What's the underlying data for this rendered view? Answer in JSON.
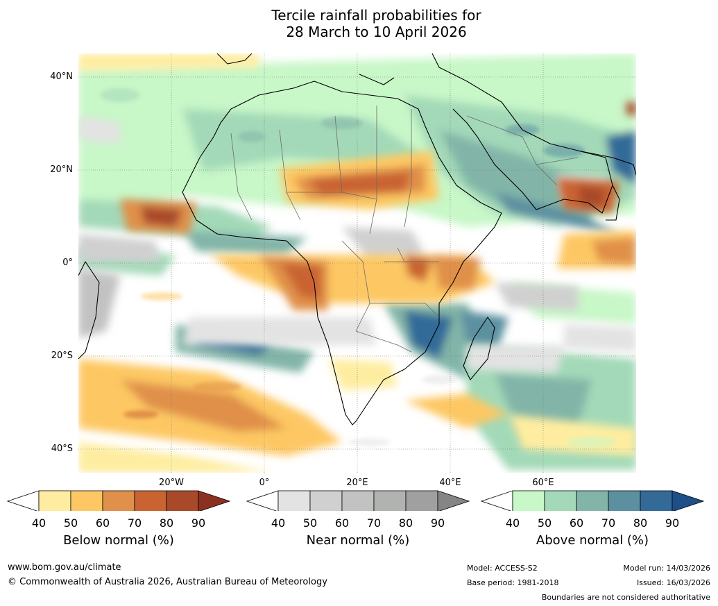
{
  "title": {
    "line1": "Tercile rainfall probabilities for",
    "line2": "28 March to 10 April 2026"
  },
  "map": {
    "lat_labels": [
      "40°N",
      "20°N",
      "0°",
      "20°S",
      "40°S"
    ],
    "lon_labels": [
      "20°W",
      "0°",
      "20°E",
      "40°E",
      "60°E"
    ]
  },
  "legend": {
    "below": {
      "title": "Below normal (%)",
      "ticks": [
        "40",
        "50",
        "60",
        "70",
        "80",
        "90"
      ],
      "colors": [
        "#ffffff",
        "#feeda0",
        "#fdc863",
        "#e0904a",
        "#c96432",
        "#a84a2a",
        "#8c3120"
      ]
    },
    "near": {
      "title": "Near normal (%)",
      "ticks": [
        "40",
        "50",
        "60",
        "70",
        "80",
        "90"
      ],
      "colors": [
        "#ffffff",
        "#e3e3e3",
        "#d0d0d0",
        "#c2c2c2",
        "#b1b3b1",
        "#a0a0a0",
        "#858585"
      ]
    },
    "above": {
      "title": "Above normal (%)",
      "ticks": [
        "40",
        "50",
        "60",
        "70",
        "80",
        "90"
      ],
      "colors": [
        "#ffffff",
        "#c8f7c8",
        "#a3d9b8",
        "#82b5a8",
        "#5c90a0",
        "#336a98",
        "#1d4f88"
      ]
    }
  },
  "footer": {
    "website": "www.bom.gov.au/climate",
    "copyright": "© Commonwealth of Australia 2026, Australian Bureau of Meteorology",
    "model": "Model: ACCESS-S2",
    "base_period": "Base period: 1981-2018",
    "model_run": "Model run: 14/03/2026",
    "issued": "Issued: 16/03/2026",
    "disclaimer": "Boundaries are not considered authoritative"
  }
}
